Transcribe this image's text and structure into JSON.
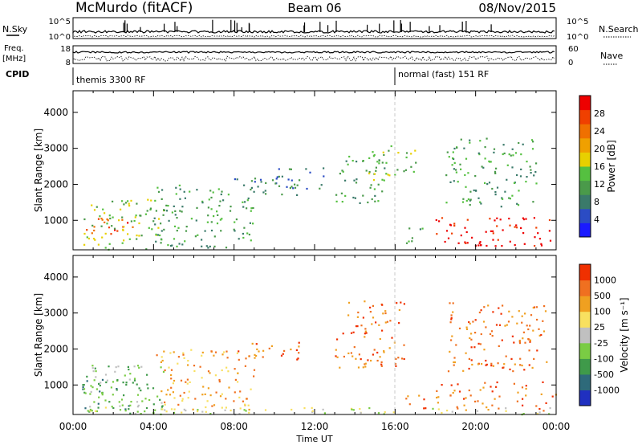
{
  "header": {
    "station": "McMurdo (fitACF)",
    "beam": "Beam 06",
    "date": "08/Nov/2015"
  },
  "sky_panel": {
    "left_label": "N.Sky",
    "right_label": "N.Search",
    "ticks_left": [
      "10^5",
      "10^0"
    ],
    "ticks_right": [
      "10^5",
      "10^0"
    ]
  },
  "freq_panel": {
    "left_label_1": "Freq.",
    "left_label_2": "[MHz]",
    "right_label": "Nave",
    "ticks_left": [
      "18",
      "8"
    ],
    "ticks_right": [
      "60",
      "0"
    ]
  },
  "cpid": {
    "label": "CPID",
    "segments": [
      {
        "name": "themis 3300 RF",
        "start_hour": 0
      },
      {
        "name": "normal (fast) 151 RF",
        "start_hour": 16
      }
    ]
  },
  "chart_data": [
    {
      "type": "heatmap",
      "parameter": "Power",
      "ylabel": "Slant Range [km]",
      "ylim": [
        180,
        4600
      ],
      "yticks": [
        "1000",
        "2000",
        "3000",
        "4000"
      ],
      "xlim_hours": [
        0,
        24
      ],
      "colorbar_label": "Power [dB]",
      "colorbar_ticks": [
        "28",
        "24",
        "20",
        "16",
        "12",
        "8",
        "4"
      ],
      "colors": [
        "#1a1aff",
        "#2b4cc4",
        "#3a7a6a",
        "#4a9a4a",
        "#55c040",
        "#e8d000",
        "#f0a000",
        "#f07000",
        "#f04000",
        "#ee0000"
      ],
      "echo_regions": [
        {
          "t0": 0.2,
          "t1": 3.0,
          "r0": 600,
          "r1": 1100,
          "level": 8
        },
        {
          "t0": 0.5,
          "t1": 4.5,
          "r0": 200,
          "r1": 1600,
          "level": 4
        },
        {
          "t0": 4.0,
          "t1": 9.0,
          "r0": 250,
          "r1": 2000,
          "level": 3
        },
        {
          "t0": 8.0,
          "t1": 11.5,
          "r0": 1700,
          "r1": 2200,
          "level": 2
        },
        {
          "t0": 10.0,
          "t1": 12.5,
          "r0": 1900,
          "r1": 2500,
          "level": 2
        },
        {
          "t0": 13.0,
          "t1": 15.5,
          "r0": 1500,
          "r1": 2800,
          "level": 3
        },
        {
          "t0": 14.5,
          "t1": 17.0,
          "r0": 2000,
          "r1": 3100,
          "level": 4
        },
        {
          "t0": 16.5,
          "t1": 17.5,
          "r0": 300,
          "r1": 800,
          "level": 3
        },
        {
          "t0": 18.0,
          "t1": 24.0,
          "r0": 300,
          "r1": 1100,
          "level": 9
        },
        {
          "t0": 18.5,
          "t1": 23.0,
          "r0": 1400,
          "r1": 3300,
          "level": 3
        }
      ]
    },
    {
      "type": "heatmap",
      "parameter": "Velocity",
      "ylabel": "Slant Range [km]",
      "ylim": [
        180,
        4600
      ],
      "yticks": [
        "1000",
        "2000",
        "3000",
        "4000"
      ],
      "xlim_hours": [
        0,
        24
      ],
      "xticks": [
        "00:00",
        "04:00",
        "08:00",
        "12:00",
        "16:00",
        "20:00",
        "00:00"
      ],
      "xlabel": "Time UT",
      "colorbar_label": "Velocity [m s⁻¹]",
      "colorbar_ticks": [
        "1000",
        "500",
        "100",
        "25",
        "-25",
        "-100",
        "-500",
        "-1000"
      ],
      "colors": [
        "#2030c0",
        "#2e6a7a",
        "#3f9a4a",
        "#7acc44",
        "#c0c0c0",
        "#f8e060",
        "#f0a020",
        "#f07020",
        "#f03000"
      ],
      "echo_regions": [
        {
          "t0": 0.2,
          "t1": 3.0,
          "r0": 300,
          "r1": 1200,
          "level": 2
        },
        {
          "t0": 0.5,
          "t1": 4.5,
          "r0": 200,
          "r1": 1600,
          "level": 3
        },
        {
          "t0": 4.0,
          "t1": 9.0,
          "r0": 250,
          "r1": 2000,
          "level": 6
        },
        {
          "t0": 8.0,
          "t1": 11.5,
          "r0": 1700,
          "r1": 2200,
          "level": 7
        },
        {
          "t0": 13.0,
          "t1": 16.5,
          "r0": 1500,
          "r1": 3400,
          "level": 7
        },
        {
          "t0": 16.5,
          "t1": 17.5,
          "r0": 300,
          "r1": 800,
          "level": 7
        },
        {
          "t0": 18.0,
          "t1": 24.0,
          "r0": 300,
          "r1": 1100,
          "level": 7
        },
        {
          "t0": 18.5,
          "t1": 23.5,
          "r0": 1400,
          "r1": 3300,
          "level": 7
        },
        {
          "t0": 0.0,
          "t1": 24.0,
          "r0": 200,
          "r1": 400,
          "level": 4
        }
      ]
    }
  ]
}
